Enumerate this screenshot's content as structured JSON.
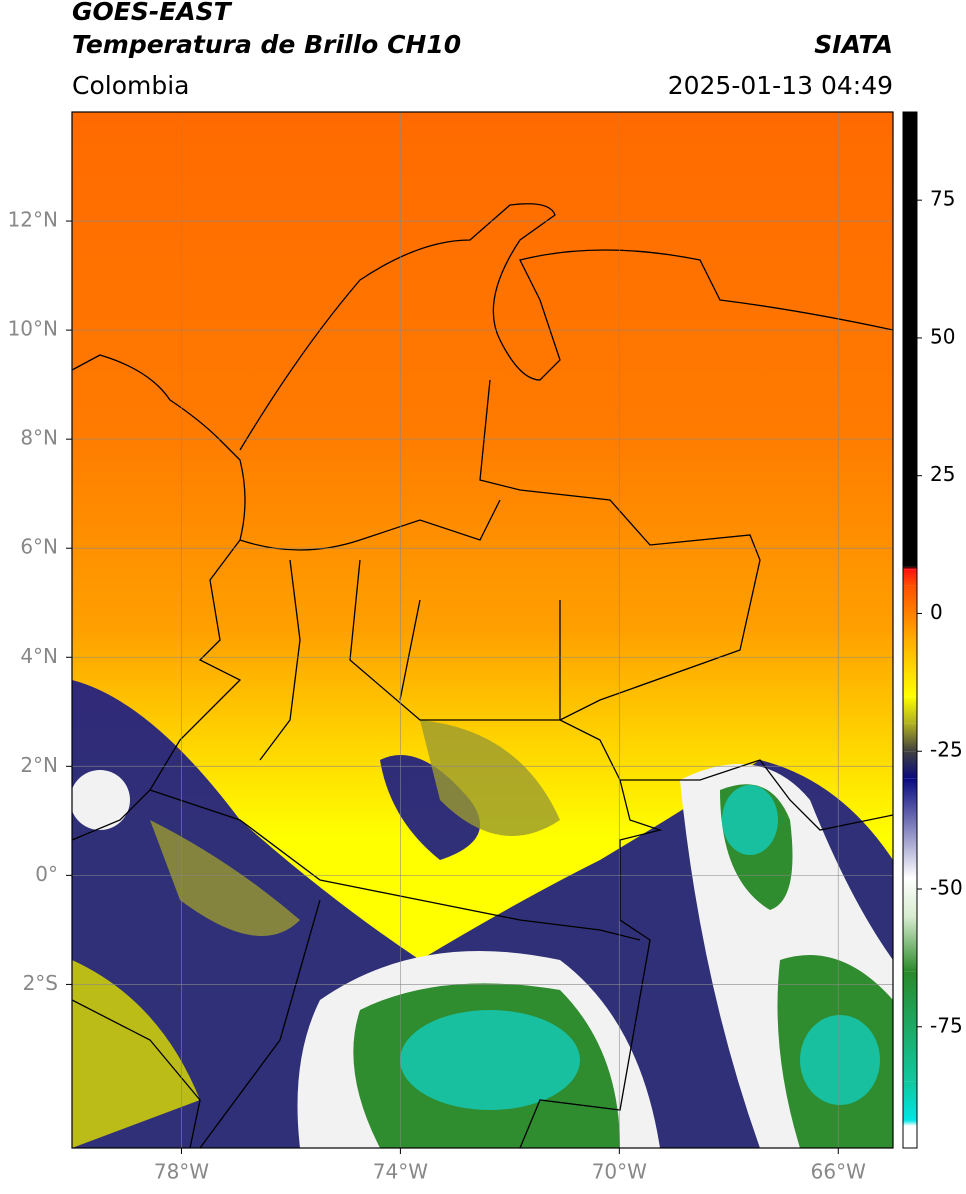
{
  "chart_data": {
    "type": "map",
    "title": "GOES-EAST",
    "subtitle": "Temperatura de Brillo CH10",
    "region": "Colombia",
    "source": "SIATA",
    "timestamp": "2025-01-13 04:49",
    "xlim": [
      -80,
      -65
    ],
    "ylim": [
      -5,
      14
    ],
    "grid": true,
    "xticks": [
      {
        "value": -78,
        "label": "78°W"
      },
      {
        "value": -74,
        "label": "74°W"
      },
      {
        "value": -70,
        "label": "70°W"
      },
      {
        "value": -66,
        "label": "66°W"
      }
    ],
    "yticks": [
      {
        "value": 12,
        "label": "12°N"
      },
      {
        "value": 10,
        "label": "10°N"
      },
      {
        "value": 8,
        "label": "8°N"
      },
      {
        "value": 6,
        "label": "6°N"
      },
      {
        "value": 4,
        "label": "4°N"
      },
      {
        "value": 2,
        "label": "2°N"
      },
      {
        "value": 0,
        "label": "0°"
      },
      {
        "value": -2,
        "label": "2°S"
      }
    ],
    "colorbar": {
      "ylim": [
        -97,
        91
      ],
      "yticks": [
        75,
        50,
        25,
        0,
        -25,
        -50,
        -75
      ],
      "stops": [
        {
          "value": -97,
          "color": "#ffffff"
        },
        {
          "value": -93,
          "color": "#ffffff"
        },
        {
          "value": -92,
          "color": "#00e5e5"
        },
        {
          "value": -85,
          "color": "#10c8a0"
        },
        {
          "value": -65,
          "color": "#2a8a2a"
        },
        {
          "value": -55,
          "color": "#d8ecd0"
        },
        {
          "value": -48,
          "color": "#ffffff"
        },
        {
          "value": -30,
          "color": "#0a0a80"
        },
        {
          "value": -25,
          "color": "#404040"
        },
        {
          "value": -20,
          "color": "#b0b020"
        },
        {
          "value": -15,
          "color": "#ffff00"
        },
        {
          "value": -5,
          "color": "#ffb000"
        },
        {
          "value": 5,
          "color": "#ff5000"
        },
        {
          "value": 8,
          "color": "#ff1010"
        },
        {
          "value": 8.5,
          "color": "#000000"
        },
        {
          "value": 91,
          "color": "#000000"
        }
      ]
    }
  }
}
